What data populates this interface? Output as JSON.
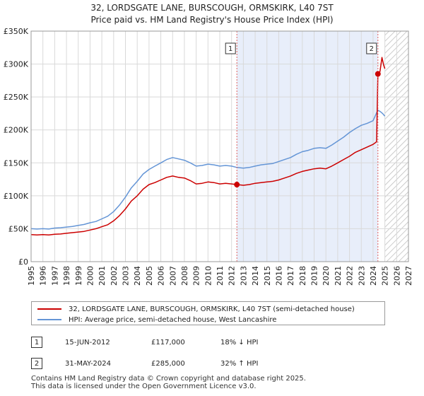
{
  "title": {
    "line1": "32, LORDSGATE LANE, BURSCOUGH, ORMSKIRK, L40 7ST",
    "line2": "Price paid vs. HM Land Registry's House Price Index (HPI)"
  },
  "colors": {
    "price_line": "#cc0000",
    "hpi_line": "#6495d6",
    "shade": "#e8eefa",
    "hatch": "#bbbbbb",
    "event_line": "#e06060"
  },
  "chart_data": {
    "type": "line",
    "title": "32, LORDSGATE LANE, BURSCOUGH, ORMSKIRK, L40 7ST — Price paid vs. HM Land Registry's House Price Index (HPI)",
    "xlim": [
      1995,
      2027
    ],
    "ylim": [
      0,
      350000
    ],
    "x_ticks": [
      "1995",
      "1996",
      "1997",
      "1998",
      "1999",
      "2000",
      "2001",
      "2002",
      "2003",
      "2004",
      "2005",
      "2006",
      "2007",
      "2008",
      "2009",
      "2010",
      "2011",
      "2012",
      "2013",
      "2014",
      "2015",
      "2016",
      "2017",
      "2018",
      "2019",
      "2020",
      "2021",
      "2022",
      "2023",
      "2024",
      "2025",
      "2026",
      "2027"
    ],
    "y_ticks": [
      {
        "value": 0,
        "label": "£0"
      },
      {
        "value": 50000,
        "label": "£50K"
      },
      {
        "value": 100000,
        "label": "£100K"
      },
      {
        "value": 150000,
        "label": "£150K"
      },
      {
        "value": 200000,
        "label": "£200K"
      },
      {
        "value": 250000,
        "label": "£250K"
      },
      {
        "value": 300000,
        "label": "£300K"
      },
      {
        "value": 350000,
        "label": "£350K"
      }
    ],
    "grid": true,
    "shaded_period": [
      2012.45,
      2024.41
    ],
    "future_hatch_from": 2025.0,
    "series": [
      {
        "name": "32, LORDSGATE LANE, BURSCOUGH, ORMSKIRK, L40 7ST (semi-detached house)",
        "color": "#cc0000",
        "x": [
          1995.0,
          1995.5,
          1996.0,
          1996.5,
          1997.0,
          1997.5,
          1998.0,
          1998.5,
          1999.0,
          1999.5,
          2000.0,
          2000.5,
          2001.0,
          2001.5,
          2002.0,
          2002.5,
          2003.0,
          2003.5,
          2004.0,
          2004.5,
          2005.0,
          2005.5,
          2006.0,
          2006.5,
          2007.0,
          2007.5,
          2008.0,
          2008.5,
          2009.0,
          2009.5,
          2010.0,
          2010.5,
          2011.0,
          2011.5,
          2012.0,
          2012.45,
          2013.0,
          2013.5,
          2014.0,
          2014.5,
          2015.0,
          2015.5,
          2016.0,
          2016.5,
          2017.0,
          2017.5,
          2018.0,
          2018.5,
          2019.0,
          2019.5,
          2020.0,
          2020.5,
          2021.0,
          2021.5,
          2022.0,
          2022.5,
          2023.0,
          2023.5,
          2024.0,
          2024.3,
          2024.41,
          2024.5,
          2024.6,
          2024.75,
          2024.9,
          2025.0
        ],
        "values": [
          41000,
          40500,
          41000,
          40500,
          41500,
          42000,
          43000,
          44000,
          45000,
          46000,
          48000,
          50000,
          53000,
          56000,
          62000,
          70000,
          80000,
          92000,
          100000,
          110000,
          117000,
          120000,
          124000,
          128000,
          130000,
          128000,
          127000,
          123000,
          118000,
          119000,
          121000,
          120000,
          118000,
          119000,
          118000,
          117000,
          116000,
          117000,
          119000,
          120000,
          121000,
          122000,
          124000,
          127000,
          130000,
          134000,
          137000,
          139000,
          141000,
          142000,
          141000,
          145000,
          150000,
          155000,
          160000,
          166000,
          170000,
          174000,
          178000,
          182000,
          285000,
          283000,
          290000,
          310000,
          298000,
          293000
        ]
      },
      {
        "name": "HPI: Average price, semi-detached house, West Lancashire",
        "color": "#6495d6",
        "x": [
          1995.0,
          1995.5,
          1996.0,
          1996.5,
          1997.0,
          1997.5,
          1998.0,
          1998.5,
          1999.0,
          1999.5,
          2000.0,
          2000.5,
          2001.0,
          2001.5,
          2002.0,
          2002.5,
          2003.0,
          2003.5,
          2004.0,
          2004.5,
          2005.0,
          2005.5,
          2006.0,
          2006.5,
          2007.0,
          2007.5,
          2008.0,
          2008.5,
          2009.0,
          2009.5,
          2010.0,
          2010.5,
          2011.0,
          2011.5,
          2012.0,
          2012.45,
          2013.0,
          2013.5,
          2014.0,
          2014.5,
          2015.0,
          2015.5,
          2016.0,
          2016.5,
          2017.0,
          2017.5,
          2018.0,
          2018.5,
          2019.0,
          2019.5,
          2020.0,
          2020.5,
          2021.0,
          2021.5,
          2022.0,
          2022.5,
          2023.0,
          2023.5,
          2024.0,
          2024.2,
          2024.4,
          2024.6,
          2024.8,
          2025.0
        ],
        "values": [
          50000,
          49500,
          50000,
          49500,
          51000,
          51500,
          52500,
          53500,
          55000,
          56500,
          59000,
          61000,
          65000,
          69000,
          76000,
          86000,
          98000,
          112000,
          122000,
          133000,
          140000,
          145000,
          150000,
          155000,
          158000,
          156000,
          154000,
          150000,
          145000,
          146000,
          148000,
          147000,
          145000,
          146000,
          145000,
          143000,
          142000,
          143000,
          145000,
          147000,
          148000,
          149000,
          152000,
          155000,
          158000,
          163000,
          167000,
          169000,
          172000,
          173000,
          172000,
          177000,
          183000,
          189000,
          196000,
          202000,
          207000,
          210000,
          214000,
          222000,
          230000,
          228000,
          225000,
          221000
        ]
      }
    ],
    "events": [
      {
        "label": "1",
        "x": 2012.45,
        "value": 117000
      },
      {
        "label": "2",
        "x": 2024.41,
        "value": 285000
      }
    ]
  },
  "legend": {
    "items": [
      {
        "label": "32, LORDSGATE LANE, BURSCOUGH, ORMSKIRK, L40 7ST (semi-detached house)"
      },
      {
        "label": "HPI: Average price, semi-detached house, West Lancashire"
      }
    ]
  },
  "events_table": [
    {
      "label": "1",
      "date": "15-JUN-2012",
      "price": "£117,000",
      "hpi": "18% ↓ HPI"
    },
    {
      "label": "2",
      "date": "31-MAY-2024",
      "price": "£285,000",
      "hpi": "32% ↑ HPI"
    }
  ],
  "footer": {
    "line1": "Contains HM Land Registry data © Crown copyright and database right 2025.",
    "line2": "This data is licensed under the Open Government Licence v3.0."
  }
}
